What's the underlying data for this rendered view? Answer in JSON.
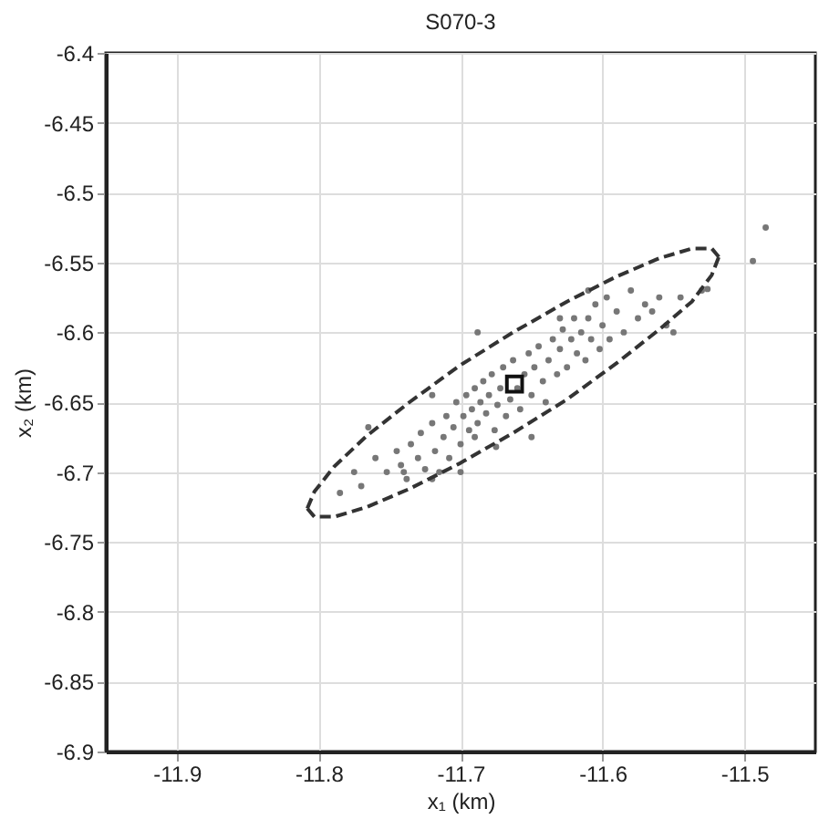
{
  "chart_data": {
    "type": "scatter",
    "title": "S070-3",
    "xlabel": "x₁ (km)",
    "ylabel": "x₂ (km)",
    "xlim": [
      -11.95,
      -11.45
    ],
    "xticks": [
      -11.9,
      -11.8,
      -11.7,
      -11.6,
      -11.5
    ],
    "ylim": [
      -6.9,
      -6.4
    ],
    "yticks": [
      -6.9,
      -6.85,
      -6.8,
      -6.75,
      -6.7,
      -6.65,
      -6.6,
      -6.55,
      -6.5,
      -6.45,
      -6.4
    ],
    "grid": true,
    "series": [
      {
        "marker": "circle",
        "color": "#777777",
        "x": [
          -11.785,
          -11.775,
          -11.77,
          -11.76,
          -11.752,
          -11.745,
          -11.742,
          -11.738,
          -11.735,
          -11.73,
          -11.728,
          -11.725,
          -11.72,
          -11.718,
          -11.715,
          -11.712,
          -11.71,
          -11.708,
          -11.705,
          -11.703,
          -11.7,
          -11.698,
          -11.696,
          -11.694,
          -11.692,
          -11.69,
          -11.688,
          -11.686,
          -11.684,
          -11.682,
          -11.68,
          -11.678,
          -11.676,
          -11.674,
          -11.672,
          -11.67,
          -11.668,
          -11.665,
          -11.663,
          -11.66,
          -11.658,
          -11.655,
          -11.652,
          -11.65,
          -11.648,
          -11.645,
          -11.642,
          -11.64,
          -11.638,
          -11.635,
          -11.632,
          -11.63,
          -11.628,
          -11.625,
          -11.622,
          -11.62,
          -11.618,
          -11.615,
          -11.612,
          -11.61,
          -11.608,
          -11.605,
          -11.602,
          -11.6,
          -11.597,
          -11.595,
          -11.59,
          -11.585,
          -11.58,
          -11.575,
          -11.57,
          -11.565,
          -11.56,
          -11.555,
          -11.545,
          -11.53,
          -11.74,
          -11.72,
          -11.7,
          -11.69,
          -11.675,
          -11.65,
          -11.688,
          -11.63,
          -11.61,
          -11.72,
          -11.55,
          -11.526,
          -11.494,
          -11.485,
          -11.765
        ],
        "values": [
          -6.715,
          -6.7,
          -6.71,
          -6.69,
          -6.7,
          -6.685,
          -6.695,
          -6.705,
          -6.68,
          -6.69,
          -6.672,
          -6.698,
          -6.665,
          -6.685,
          -6.7,
          -6.675,
          -6.66,
          -6.69,
          -6.668,
          -6.65,
          -6.68,
          -6.66,
          -6.645,
          -6.67,
          -6.655,
          -6.64,
          -6.665,
          -6.65,
          -6.635,
          -6.658,
          -6.645,
          -6.63,
          -6.67,
          -6.652,
          -6.64,
          -6.625,
          -6.66,
          -6.648,
          -6.62,
          -6.64,
          -6.655,
          -6.63,
          -6.615,
          -6.645,
          -6.625,
          -6.61,
          -6.635,
          -6.65,
          -6.62,
          -6.605,
          -6.63,
          -6.612,
          -6.598,
          -6.625,
          -6.605,
          -6.59,
          -6.615,
          -6.6,
          -6.62,
          -6.59,
          -6.605,
          -6.58,
          -6.612,
          -6.595,
          -6.575,
          -6.605,
          -6.585,
          -6.6,
          -6.57,
          -6.59,
          -6.58,
          -6.585,
          -6.575,
          -6.595,
          -6.575,
          -6.57,
          -6.7,
          -6.645,
          -6.7,
          -6.675,
          -6.682,
          -6.675,
          -6.6,
          -6.59,
          -6.57,
          -6.705,
          -6.6,
          -6.569,
          -6.549,
          -6.525,
          -6.668
        ]
      },
      {
        "type": "line",
        "marker": "none",
        "line_style": "dashed",
        "color": "#333333",
        "x": [
          -11.808,
          -11.803,
          -11.789,
          -11.766,
          -11.736,
          -11.701,
          -11.663,
          -11.625,
          -11.59,
          -11.56,
          -11.537,
          -11.523,
          -11.518
        ],
        "values": [
          -6.726,
          -6.714,
          -6.696,
          -6.674,
          -6.65,
          -6.624,
          -6.6,
          -6.578,
          -6.56,
          -6.547,
          -6.54,
          -6.54,
          -6.546
        ]
      },
      {
        "type": "line",
        "marker": "none",
        "line_style": "dashed",
        "color": "#333333",
        "x": [
          -11.808,
          -11.803,
          -11.789,
          -11.766,
          -11.736,
          -11.701,
          -11.663,
          -11.625,
          -11.59,
          -11.56,
          -11.537,
          -11.523,
          -11.518
        ],
        "values": [
          -6.726,
          -6.732,
          -6.732,
          -6.725,
          -6.712,
          -6.694,
          -6.672,
          -6.648,
          -6.622,
          -6.598,
          -6.578,
          -6.559,
          -6.546
        ]
      },
      {
        "marker": "square",
        "color": "#111111",
        "x": [
          -11.662
        ],
        "values": [
          -6.637
        ]
      }
    ]
  }
}
